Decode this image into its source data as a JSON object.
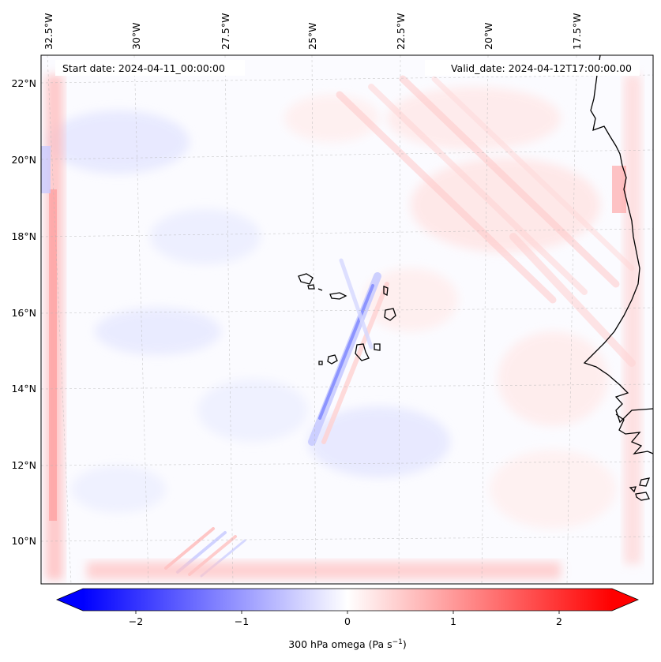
{
  "map": {
    "start_date_label": "Start date: 2024-04-11_00:00:00",
    "valid_date_label": "Valid_date: 2024-04-12T17:00:00.00",
    "lon_labels": [
      "32.5°W",
      "30°W",
      "27.5°W",
      "25°W",
      "22.5°W",
      "20°W",
      "17.5°W"
    ],
    "lat_labels": [
      "22°N",
      "20°N",
      "18°N",
      "16°N",
      "14°N",
      "12°N",
      "10°N"
    ],
    "field": "300 hPa omega",
    "units": "Pa s⁻¹"
  },
  "colorbar": {
    "ticks": [
      "−2",
      "−1",
      "0",
      "1",
      "2"
    ],
    "tick_values": [
      -2,
      -1,
      0,
      1,
      2
    ],
    "vmin": -2.5,
    "vmax": 2.5,
    "label_main": "300 hPa omega (Pa s",
    "label_sup": "−1",
    "label_end": ")",
    "colors": {
      "negative": "#0000ff",
      "neutral": "#ffffff",
      "positive": "#ff0000"
    }
  }
}
